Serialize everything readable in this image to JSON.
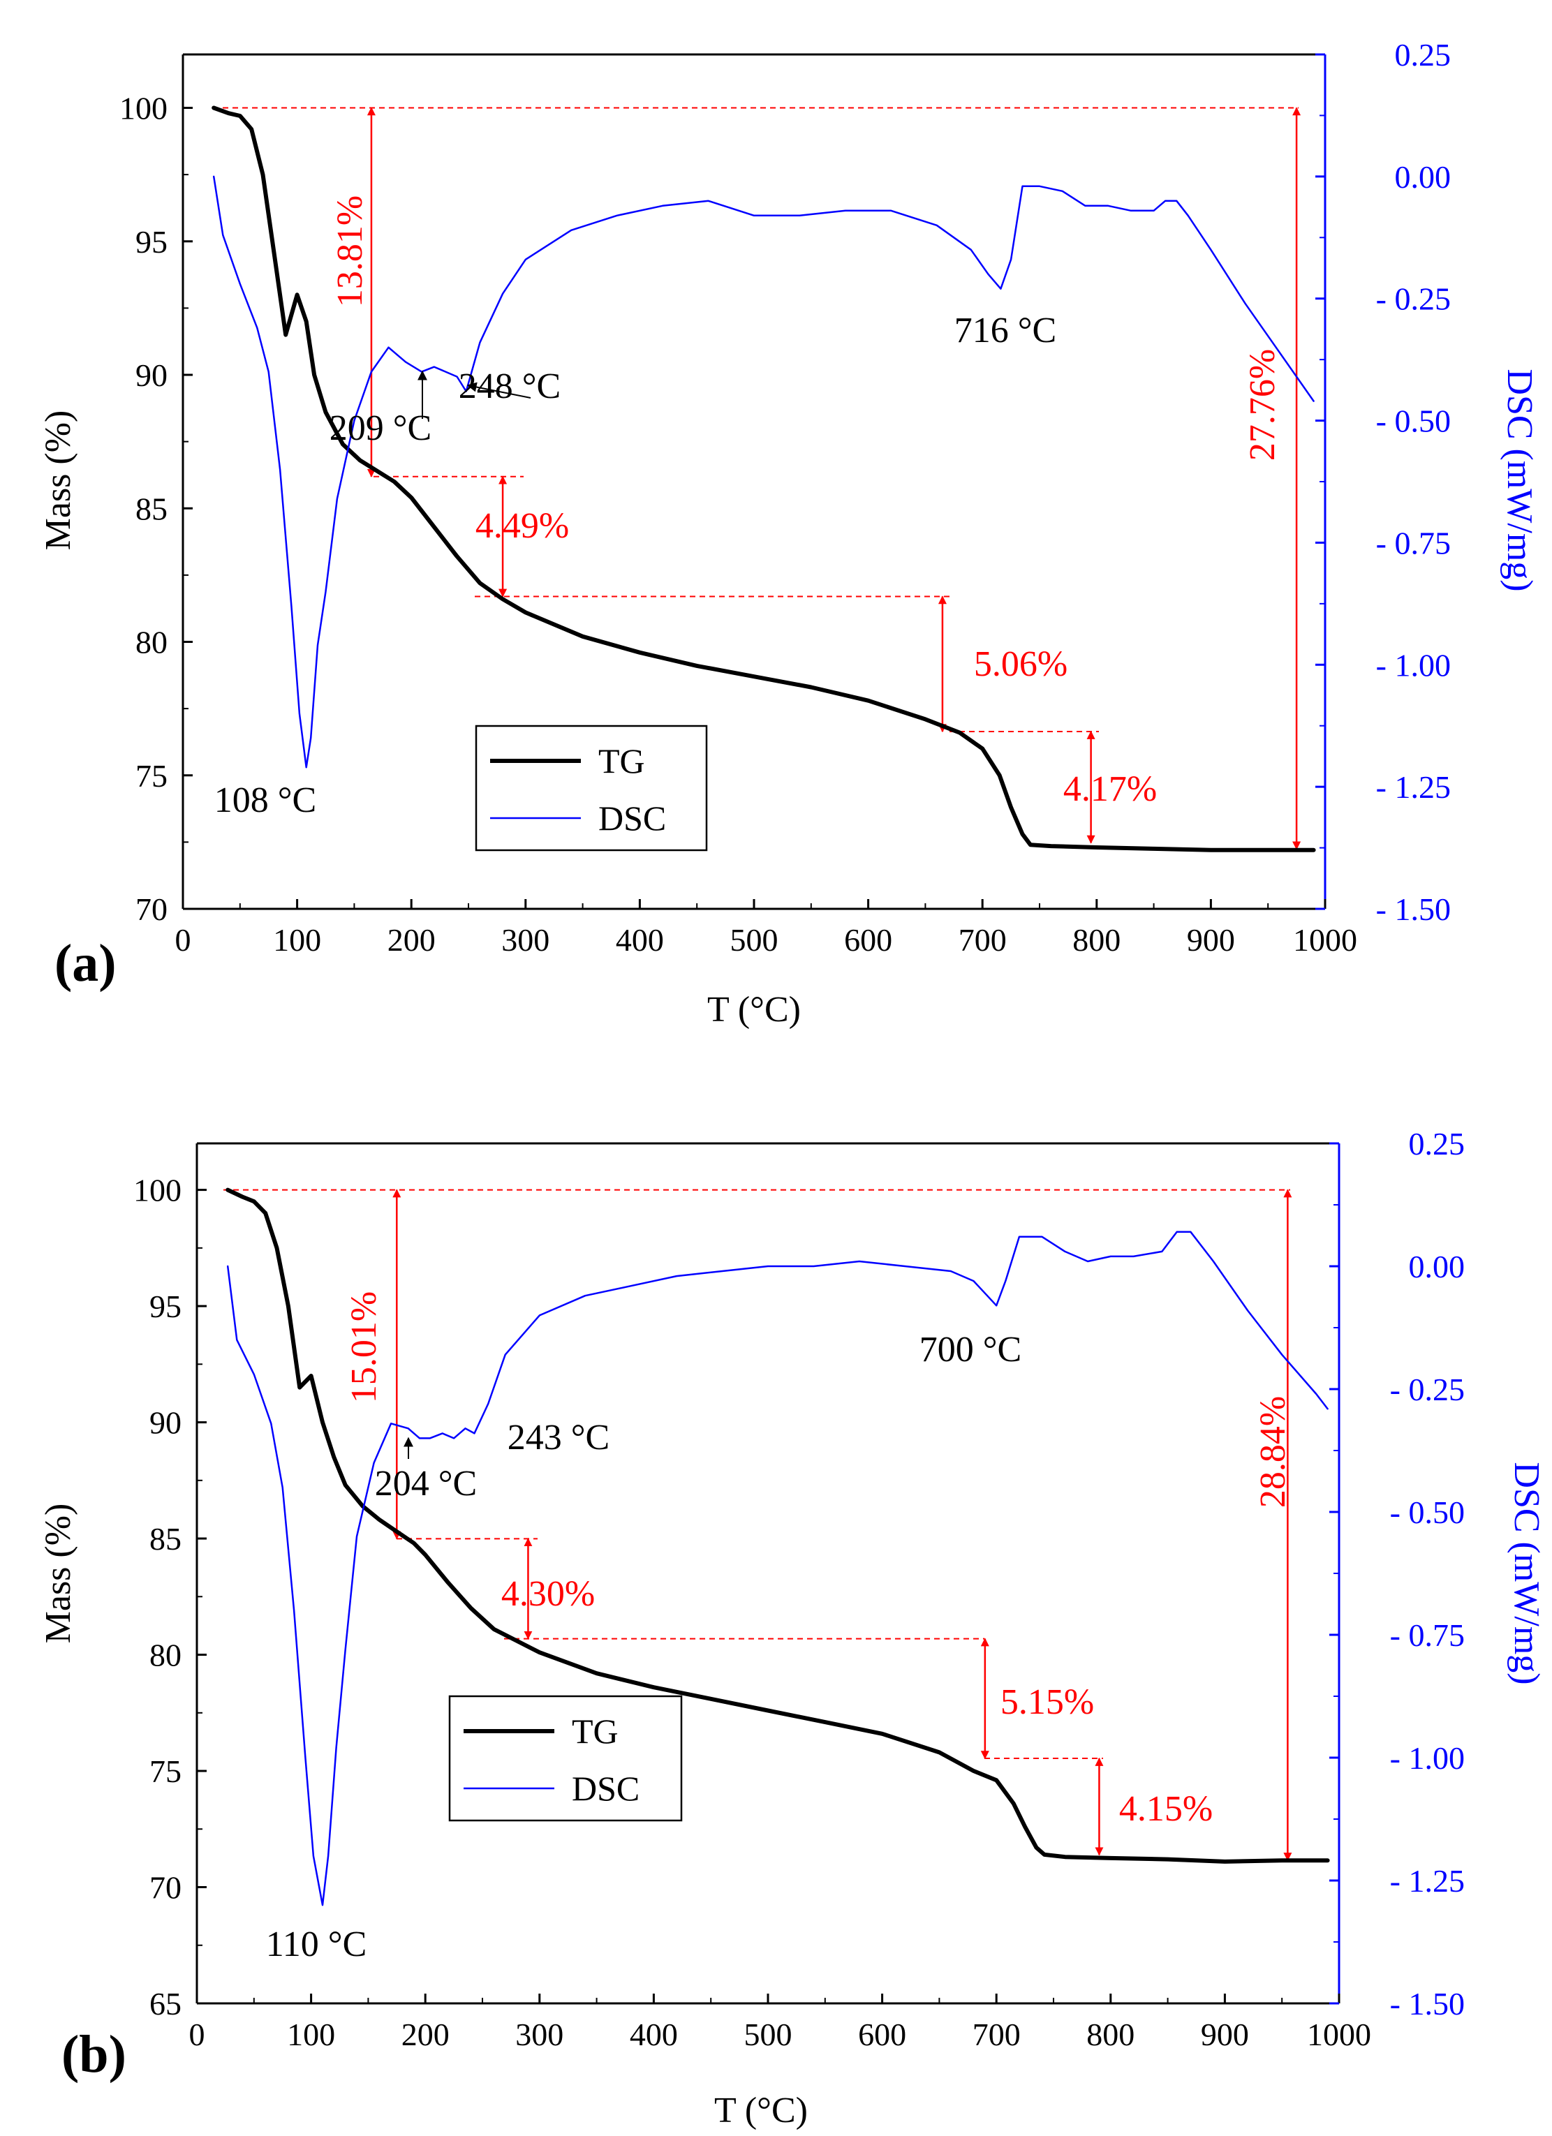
{
  "colors": {
    "tg": "#000000",
    "dsc": "#0000ff",
    "annotation": "#ff0000",
    "axis_left": "#000000",
    "axis_right": "#0000ff"
  },
  "chart_data": [
    {
      "type": "line",
      "panel": "(a)",
      "xlabel": "T (°C)",
      "ylabel": "Mass (%)",
      "y2label": "DSC (mW/mg)",
      "xlim": [
        0,
        1000
      ],
      "ylim": [
        70,
        102
      ],
      "y2lim": [
        -1.5,
        0.25
      ],
      "xticks": [
        0,
        100,
        200,
        300,
        400,
        500,
        600,
        700,
        800,
        900,
        1000
      ],
      "yticks": [
        70,
        75,
        80,
        85,
        90,
        95,
        100
      ],
      "y2ticks": [
        0.25,
        0.0,
        -0.25,
        -0.5,
        -0.75,
        -1.0,
        -1.25,
        -1.5
      ],
      "y2tick_labels": [
        "0.25",
        "0.00",
        "- 0.25",
        "- 0.50",
        "- 0.75",
        "- 1.00",
        "- 1.25",
        "- 1.50"
      ],
      "legend": {
        "position": "lower-left",
        "entries": [
          "TG",
          "DSC"
        ]
      },
      "series": [
        {
          "name": "TG",
          "axis": "left",
          "x": [
            27,
            40,
            50,
            60,
            70,
            80,
            90,
            100,
            108,
            115,
            125,
            140,
            155,
            170,
            185,
            200,
            220,
            240,
            260,
            280,
            300,
            350,
            400,
            450,
            500,
            550,
            600,
            650,
            680,
            700,
            715,
            725,
            735,
            742,
            760,
            800,
            850,
            900,
            950,
            990
          ],
          "y": [
            100.0,
            99.8,
            99.7,
            99.2,
            97.5,
            94.5,
            91.5,
            93.0,
            92.0,
            90.0,
            88.6,
            87.4,
            86.8,
            86.4,
            86.0,
            85.4,
            84.3,
            83.2,
            82.2,
            81.6,
            81.1,
            80.2,
            79.6,
            79.1,
            78.7,
            78.3,
            77.8,
            77.1,
            76.6,
            76.0,
            75.0,
            73.8,
            72.8,
            72.4,
            72.35,
            72.3,
            72.25,
            72.2,
            72.2,
            72.2
          ],
          "values_note": "read from curve"
        },
        {
          "name": "DSC",
          "axis": "right",
          "x": [
            27,
            35,
            50,
            65,
            75,
            85,
            95,
            102,
            108,
            112,
            118,
            125,
            135,
            150,
            165,
            180,
            195,
            209,
            220,
            230,
            240,
            248,
            260,
            280,
            300,
            340,
            380,
            420,
            460,
            500,
            540,
            580,
            620,
            660,
            690,
            705,
            716,
            725,
            735,
            750,
            770,
            790,
            810,
            830,
            850,
            860,
            870,
            880,
            900,
            930,
            960,
            990
          ],
          "y": [
            0.0,
            -0.12,
            -0.22,
            -0.31,
            -0.4,
            -0.6,
            -0.88,
            -1.1,
            -1.21,
            -1.15,
            -0.96,
            -0.85,
            -0.66,
            -0.5,
            -0.4,
            -0.35,
            -0.38,
            -0.4,
            -0.39,
            -0.4,
            -0.41,
            -0.44,
            -0.34,
            -0.24,
            -0.17,
            -0.11,
            -0.08,
            -0.06,
            -0.05,
            -0.08,
            -0.08,
            -0.07,
            -0.07,
            -0.1,
            -0.15,
            -0.2,
            -0.23,
            -0.17,
            -0.02,
            -0.02,
            -0.03,
            -0.06,
            -0.06,
            -0.07,
            -0.07,
            -0.05,
            -0.05,
            -0.08,
            -0.15,
            -0.26,
            -0.36,
            -0.46
          ],
          "values_note": "read from curve"
        }
      ],
      "annotations": [
        {
          "text": "108 °C",
          "x": 108,
          "y": -1.21,
          "axis": "right"
        },
        {
          "text": "209 °C",
          "x": 209,
          "y": -0.4,
          "axis": "right"
        },
        {
          "text": "248 °C",
          "x": 248,
          "y": -0.44,
          "axis": "right"
        },
        {
          "text": "716 °C",
          "x": 716,
          "y": -0.23,
          "axis": "right"
        }
      ],
      "mass_losses": [
        {
          "text": "13.81%",
          "from": 100.0,
          "to": 86.19,
          "x": 165
        },
        {
          "text": "4.49%",
          "from": 86.19,
          "to": 81.7,
          "x": 280
        },
        {
          "text": "5.06%",
          "from": 81.7,
          "to": 76.64,
          "x": 665
        },
        {
          "text": "4.17%",
          "from": 76.64,
          "to": 72.47,
          "x": 795
        },
        {
          "text": "27.76%",
          "from": 100.0,
          "to": 72.24,
          "x": 975
        }
      ]
    },
    {
      "type": "line",
      "panel": "(b)",
      "xlabel": "T (°C)",
      "ylabel": "Mass (%)",
      "y2label": "DSC (mW/mg)",
      "xlim": [
        0,
        1000
      ],
      "ylim": [
        65,
        102
      ],
      "y2lim": [
        -1.5,
        0.25
      ],
      "xticks": [
        0,
        100,
        200,
        300,
        400,
        500,
        600,
        700,
        800,
        900,
        1000
      ],
      "yticks": [
        65,
        70,
        75,
        80,
        85,
        90,
        95,
        100
      ],
      "y2ticks": [
        0.25,
        0.0,
        -0.25,
        -0.5,
        -0.75,
        -1.0,
        -1.25,
        -1.5
      ],
      "y2tick_labels": [
        "0.25",
        "0.00",
        "- 0.25",
        "- 0.50",
        "- 0.75",
        "- 1.00",
        "- 1.25",
        "- 1.50"
      ],
      "legend": {
        "position": "lower-left",
        "entries": [
          "TG",
          "DSC"
        ]
      },
      "series": [
        {
          "name": "TG",
          "axis": "left",
          "x": [
            27,
            40,
            50,
            60,
            70,
            80,
            90,
            100,
            110,
            120,
            130,
            145,
            160,
            175,
            190,
            200,
            220,
            240,
            260,
            280,
            300,
            350,
            400,
            450,
            500,
            550,
            600,
            650,
            680,
            700,
            715,
            725,
            735,
            742,
            760,
            800,
            850,
            900,
            950,
            990
          ],
          "y": [
            100.0,
            99.7,
            99.5,
            99.0,
            97.5,
            95.0,
            91.5,
            92.0,
            90.0,
            88.5,
            87.3,
            86.4,
            85.8,
            85.3,
            84.8,
            84.3,
            83.1,
            82.0,
            81.1,
            80.6,
            80.1,
            79.2,
            78.6,
            78.1,
            77.6,
            77.1,
            76.6,
            75.8,
            75.0,
            74.6,
            73.6,
            72.6,
            71.7,
            71.4,
            71.3,
            71.25,
            71.2,
            71.1,
            71.15,
            71.15
          ],
          "values_note": "read from curve"
        },
        {
          "name": "DSC",
          "axis": "right",
          "x": [
            27,
            35,
            50,
            65,
            75,
            85,
            95,
            102,
            110,
            115,
            122,
            130,
            140,
            155,
            170,
            185,
            195,
            204,
            215,
            225,
            235,
            243,
            255,
            270,
            300,
            340,
            380,
            420,
            460,
            500,
            540,
            580,
            620,
            660,
            680,
            692,
            700,
            708,
            720,
            740,
            760,
            780,
            800,
            820,
            845,
            858,
            870,
            890,
            920,
            950,
            980,
            990
          ],
          "y": [
            0.0,
            -0.15,
            -0.22,
            -0.32,
            -0.45,
            -0.7,
            -1.0,
            -1.2,
            -1.3,
            -1.2,
            -0.98,
            -0.78,
            -0.55,
            -0.4,
            -0.32,
            -0.33,
            -0.35,
            -0.35,
            -0.34,
            -0.35,
            -0.33,
            -0.34,
            -0.28,
            -0.18,
            -0.1,
            -0.06,
            -0.04,
            -0.02,
            -0.01,
            0.0,
            0.0,
            0.01,
            0.0,
            -0.01,
            -0.03,
            -0.06,
            -0.08,
            -0.03,
            0.06,
            0.06,
            0.03,
            0.01,
            0.02,
            0.02,
            0.03,
            0.07,
            0.07,
            0.01,
            -0.09,
            -0.18,
            -0.26,
            -0.29
          ],
          "values_note": "read from curve"
        }
      ],
      "annotations": [
        {
          "text": "110 °C",
          "x": 110,
          "y": -1.3,
          "axis": "right"
        },
        {
          "text": "204 °C",
          "x": 204,
          "y": -0.35,
          "axis": "right"
        },
        {
          "text": "243 °C",
          "x": 243,
          "y": -0.34,
          "axis": "right"
        },
        {
          "text": "700 °C",
          "x": 700,
          "y": -0.08,
          "axis": "right"
        }
      ],
      "mass_losses": [
        {
          "text": "15.01%",
          "from": 100.0,
          "to": 84.99,
          "x": 175
        },
        {
          "text": "4.30%",
          "from": 84.99,
          "to": 80.69,
          "x": 290
        },
        {
          "text": "5.15%",
          "from": 80.69,
          "to": 75.54,
          "x": 690
        },
        {
          "text": "4.15%",
          "from": 75.54,
          "to": 71.39,
          "x": 790
        },
        {
          "text": "28.84%",
          "from": 100.0,
          "to": 71.16,
          "x": 955
        }
      ]
    }
  ]
}
